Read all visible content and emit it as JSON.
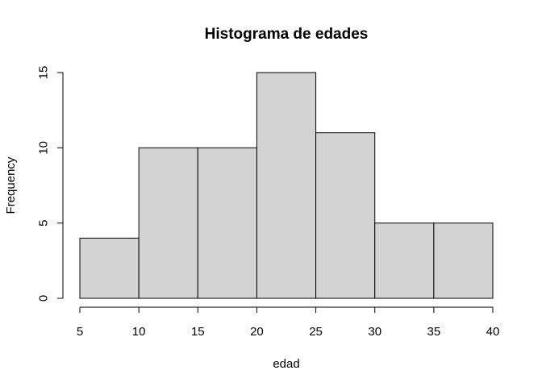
{
  "chart_data": {
    "type": "bar",
    "title": "Histograma de edades",
    "xlabel": "edad",
    "ylabel": "Frequency",
    "bins": [
      {
        "from": 5,
        "to": 10,
        "count": 4
      },
      {
        "from": 10,
        "to": 15,
        "count": 10
      },
      {
        "from": 15,
        "to": 20,
        "count": 10
      },
      {
        "from": 20,
        "to": 25,
        "count": 15
      },
      {
        "from": 25,
        "to": 30,
        "count": 11
      },
      {
        "from": 30,
        "to": 35,
        "count": 5
      },
      {
        "from": 35,
        "to": 40,
        "count": 5
      }
    ],
    "xlim": [
      5,
      40
    ],
    "ylim": [
      0,
      15
    ],
    "x_ticks": [
      5,
      10,
      15,
      20,
      25,
      30,
      35,
      40
    ],
    "y_ticks": [
      0,
      5,
      10,
      15
    ],
    "grid": false,
    "bar_color": "#d3d3d3",
    "border_color": "#000000"
  }
}
